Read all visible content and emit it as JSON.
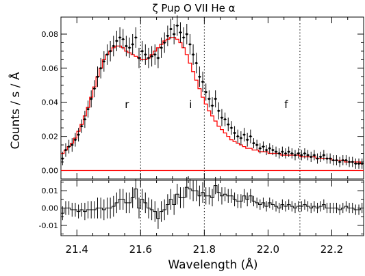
{
  "chart_data": {
    "type": "line",
    "title": "ζ Pup O VII He α",
    "xlabel": "Wavelength (Å)",
    "ylabel": "Counts / s / Å",
    "xlim": [
      21.35,
      22.3
    ],
    "xticks": [
      "21.4",
      "21.6",
      "21.8",
      "22.0",
      "22.2"
    ],
    "top_panel": {
      "ylim": [
        -0.005,
        0.09
      ],
      "yticks": [
        "0.00",
        "0.02",
        "0.04",
        "0.06",
        "0.08"
      ],
      "x": [
        21.355,
        21.365,
        21.375,
        21.385,
        21.395,
        21.405,
        21.415,
        21.425,
        21.435,
        21.445,
        21.455,
        21.465,
        21.475,
        21.485,
        21.495,
        21.505,
        21.515,
        21.525,
        21.535,
        21.545,
        21.555,
        21.565,
        21.575,
        21.585,
        21.595,
        21.605,
        21.615,
        21.625,
        21.635,
        21.645,
        21.655,
        21.665,
        21.675,
        21.685,
        21.695,
        21.705,
        21.715,
        21.725,
        21.735,
        21.745,
        21.755,
        21.765,
        21.775,
        21.785,
        21.795,
        21.805,
        21.815,
        21.825,
        21.835,
        21.845,
        21.855,
        21.865,
        21.875,
        21.885,
        21.895,
        21.905,
        21.915,
        21.925,
        21.935,
        21.945,
        21.955,
        21.965,
        21.975,
        21.985,
        21.995,
        22.005,
        22.015,
        22.025,
        22.035,
        22.045,
        22.055,
        22.065,
        22.075,
        22.085,
        22.095,
        22.105,
        22.115,
        22.125,
        22.135,
        22.145,
        22.155,
        22.165,
        22.175,
        22.185,
        22.195,
        22.205,
        22.215,
        22.225,
        22.235,
        22.245,
        22.255,
        22.265,
        22.275,
        22.285,
        22.295
      ],
      "series": [
        {
          "values": [
            0.007,
            0.012,
            0.014,
            0.015,
            0.018,
            0.021,
            0.026,
            0.03,
            0.036,
            0.042,
            0.048,
            0.055,
            0.06,
            0.064,
            0.068,
            0.07,
            0.073,
            0.076,
            0.078,
            0.077,
            0.073,
            0.072,
            0.074,
            0.078,
            0.066,
            0.07,
            0.068,
            0.066,
            0.067,
            0.068,
            0.066,
            0.072,
            0.075,
            0.079,
            0.083,
            0.08,
            0.085,
            0.081,
            0.078,
            0.08,
            0.074,
            0.068,
            0.063,
            0.055,
            0.052,
            0.046,
            0.042,
            0.038,
            0.042,
            0.035,
            0.031,
            0.03,
            0.027,
            0.025,
            0.022,
            0.02,
            0.019,
            0.021,
            0.018,
            0.02,
            0.016,
            0.015,
            0.013,
            0.014,
            0.012,
            0.013,
            0.012,
            0.011,
            0.01,
            0.011,
            0.01,
            0.011,
            0.01,
            0.009,
            0.01,
            0.009,
            0.01,
            0.009,
            0.008,
            0.009,
            0.007,
            0.008,
            0.009,
            0.007,
            0.007,
            0.006,
            0.006,
            0.005,
            0.006,
            0.006,
            0.005,
            0.005,
            0.004,
            0.004,
            0.004
          ],
          "errors": [
            0.004,
            0.004,
            0.004,
            0.004,
            0.004,
            0.004,
            0.004,
            0.005,
            0.005,
            0.005,
            0.005,
            0.006,
            0.006,
            0.006,
            0.006,
            0.006,
            0.006,
            0.006,
            0.006,
            0.006,
            0.006,
            0.006,
            0.006,
            0.006,
            0.006,
            0.006,
            0.006,
            0.006,
            0.006,
            0.006,
            0.006,
            0.006,
            0.006,
            0.006,
            0.006,
            0.006,
            0.006,
            0.006,
            0.006,
            0.006,
            0.006,
            0.006,
            0.006,
            0.006,
            0.006,
            0.005,
            0.005,
            0.005,
            0.005,
            0.005,
            0.005,
            0.004,
            0.004,
            0.004,
            0.004,
            0.004,
            0.004,
            0.004,
            0.004,
            0.004,
            0.003,
            0.003,
            0.003,
            0.003,
            0.003,
            0.003,
            0.003,
            0.003,
            0.003,
            0.003,
            0.003,
            0.003,
            0.003,
            0.003,
            0.003,
            0.003,
            0.003,
            0.003,
            0.003,
            0.003,
            0.003,
            0.003,
            0.003,
            0.003,
            0.003,
            0.003,
            0.003,
            0.003,
            0.003,
            0.003,
            0.003,
            0.003,
            0.003,
            0.003,
            0.003
          ]
        },
        {
          "values": [
            0.01,
            0.012,
            0.014,
            0.016,
            0.019,
            0.023,
            0.027,
            0.032,
            0.037,
            0.043,
            0.049,
            0.055,
            0.06,
            0.065,
            0.068,
            0.07,
            0.072,
            0.073,
            0.073,
            0.072,
            0.07,
            0.069,
            0.068,
            0.067,
            0.066,
            0.065,
            0.065,
            0.066,
            0.068,
            0.07,
            0.072,
            0.074,
            0.076,
            0.077,
            0.078,
            0.078,
            0.077,
            0.075,
            0.072,
            0.068,
            0.063,
            0.058,
            0.053,
            0.048,
            0.043,
            0.039,
            0.035,
            0.032,
            0.029,
            0.026,
            0.024,
            0.022,
            0.02,
            0.018,
            0.017,
            0.016,
            0.015,
            0.014,
            0.013,
            0.013,
            0.012,
            0.012,
            0.011,
            0.011,
            0.011,
            0.01,
            0.01,
            0.01,
            0.01,
            0.009,
            0.009,
            0.009,
            0.009,
            0.009,
            0.009,
            0.008,
            0.008,
            0.008,
            0.008,
            0.008,
            0.007,
            0.007,
            0.007,
            0.007,
            0.007,
            0.006,
            0.006,
            0.006,
            0.006,
            0.005,
            0.005,
            0.005,
            0.005,
            0.005,
            0.004
          ],
          "color": "#ff0000"
        }
      ],
      "baseline": 0.0,
      "baseline_color": "#ff0000"
    },
    "bottom_panel": {
      "ylim": [
        -0.016,
        0.016
      ],
      "yticks": [
        "0.01",
        "0.00",
        "-0.01"
      ],
      "residuals": [
        -0.003,
        0.0,
        0.0,
        -0.001,
        -0.001,
        -0.002,
        -0.001,
        -0.002,
        -0.001,
        -0.001,
        -0.001,
        0.0,
        0.0,
        -0.001,
        0.0,
        0.0,
        0.001,
        0.003,
        0.005,
        0.005,
        0.003,
        0.003,
        0.006,
        0.011,
        0.0,
        0.005,
        0.003,
        0.0,
        -0.001,
        -0.002,
        -0.006,
        -0.002,
        -0.001,
        0.002,
        0.005,
        0.002,
        0.008,
        0.006,
        0.006,
        0.012,
        0.011,
        0.01,
        0.01,
        0.007,
        0.009,
        0.007,
        0.007,
        0.006,
        0.013,
        0.009,
        0.007,
        0.008,
        0.007,
        0.007,
        0.005,
        0.004,
        0.004,
        0.007,
        0.005,
        0.007,
        0.004,
        0.003,
        0.002,
        0.003,
        0.001,
        0.003,
        0.002,
        0.001,
        0.0,
        0.002,
        0.001,
        0.002,
        0.001,
        0.0,
        0.001,
        0.001,
        0.002,
        0.001,
        0.0,
        0.001,
        0.0,
        0.001,
        0.002,
        0.0,
        0.0,
        0.0,
        0.0,
        -0.001,
        0.0,
        0.001,
        0.0,
        0.0,
        -0.001,
        -0.001,
        0.0
      ]
    },
    "reference_lines": [
      {
        "x": 21.6,
        "label": "r"
      },
      {
        "x": 21.8,
        "label": "i"
      },
      {
        "x": 22.1,
        "label": "f"
      }
    ],
    "grid": false
  }
}
